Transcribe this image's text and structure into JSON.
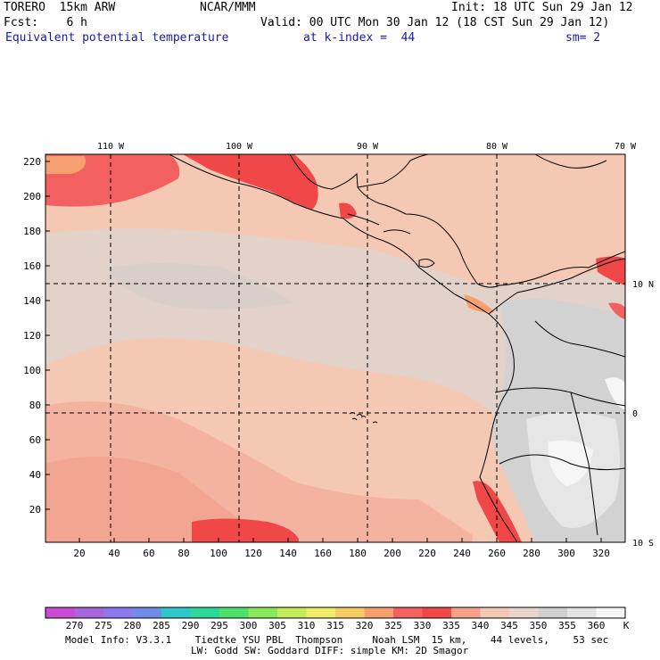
{
  "header": {
    "model": "TORERO  15km ARW",
    "org": "NCAR/MMM",
    "init": "Init: 18 UTC Sun 29 Jan 12",
    "fcst": "Fcst:    6 h",
    "valid": "Valid: 00 UTC Mon 30 Jan 12 (18 CST Sun 29 Jan 12)",
    "field": "Equivalent potential temperature",
    "level": "at k-index =  44",
    "smooth": "sm= 2"
  },
  "map": {
    "top_lon_labels": [
      "110 W",
      "100 W",
      "90 W",
      "80 W",
      "70 W"
    ],
    "right_lat_labels": [
      "10 N",
      "0",
      "10 S"
    ],
    "left_y_ticks": [
      "220",
      "200",
      "180",
      "160",
      "140",
      "120",
      "100",
      "80",
      "60",
      "40",
      "20"
    ],
    "bottom_x_ticks": [
      "20",
      "40",
      "60",
      "80",
      "100",
      "120",
      "140",
      "160",
      "180",
      "200",
      "220",
      "240",
      "260",
      "280",
      "300",
      "320"
    ]
  },
  "colorbar": {
    "labels": [
      "270",
      "275",
      "280",
      "285",
      "290",
      "295",
      "300",
      "305",
      "310",
      "315",
      "320",
      "325",
      "330",
      "335",
      "340",
      "345",
      "350",
      "355",
      "360"
    ],
    "unit": "K",
    "colors": [
      "#c84bd2",
      "#a667db",
      "#8c78eb",
      "#6e8ce8",
      "#2fc8c8",
      "#2ed89a",
      "#4ee06c",
      "#8ae85a",
      "#c4ec5a",
      "#eeec6a",
      "#f6cc62",
      "#f6a070",
      "#f26060",
      "#f04848",
      "#f6a08a",
      "#f5c8b4",
      "#e8d5cc",
      "#d0d0d0",
      "#e4e4e4",
      "#f6f6f6"
    ]
  },
  "footer": {
    "line1": "Model Info: V3.3.1    Tiedtke YSU PBL  Thompson     Noah LSM  15 km,    44 levels,    53 sec",
    "line2": "LW: Godd SW: Goddard DIFF: simple KM: 2D Smagor"
  }
}
